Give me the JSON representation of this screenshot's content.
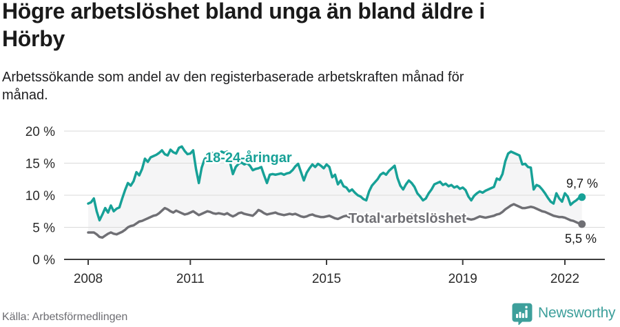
{
  "header": {
    "title": "Högre arbetslöshet bland unga än bland äldre i Hörby",
    "subtitle": "Arbetssökande som andel av den registerbaserade arbetskraften månad för månad."
  },
  "footer": {
    "source": "Källa: Arbetsförmedlingen",
    "brand": "Newsworthy"
  },
  "colors": {
    "youth_line": "#17a197",
    "total_line": "#6f6f74",
    "area_fill": "#f5f5f6",
    "gridline": "#dadada",
    "axis": "#3c3c3c",
    "text_dark": "#1a1a1a",
    "source_text": "#6c6c71",
    "brand_teal": "#3d9f9b"
  },
  "chart_data": {
    "type": "line",
    "title": "Högre arbetslöshet bland unga än bland äldre i Hörby",
    "subtitle": "Arbetssökande som andel av den registerbaserade arbetskraften månad för månad.",
    "unit": "%",
    "frequency": "monthly",
    "x_start": "2008-01",
    "x_end": "2022-07",
    "ylim": [
      0,
      20
    ],
    "grid": "horizontal",
    "legend_position": "inline-labels",
    "x_tick_labels": [
      "2008",
      "2011",
      "2015",
      "2019",
      "2022"
    ],
    "x_tick_years": [
      2008,
      2011,
      2015,
      2019,
      2022
    ],
    "y_tick_values": [
      0,
      5,
      10,
      15,
      20
    ],
    "y_tick_labels": [
      "0 %",
      "5 %",
      "10 %",
      "15 %",
      "20 %"
    ],
    "series": [
      {
        "id": "youth",
        "name": "18-24-åringar",
        "color": "#17a197",
        "last_value_label": "9,7 %",
        "last_value": 9.7,
        "values": [
          8.7,
          8.9,
          9.5,
          7.5,
          6.1,
          7.0,
          8.0,
          7.3,
          8.4,
          7.5,
          7.9,
          8.1,
          9.5,
          10.8,
          11.9,
          11.5,
          12.2,
          13.6,
          13.1,
          14.1,
          15.7,
          15.2,
          15.9,
          16.1,
          16.3,
          16.6,
          17.0,
          16.4,
          16.2,
          17.1,
          16.7,
          16.5,
          17.4,
          17.6,
          16.9,
          16.4,
          16.5,
          17.0,
          14.1,
          11.9,
          14.3,
          15.6,
          16.1,
          16.4,
          16.6,
          16.3,
          16.5,
          16.8,
          16.6,
          16.8,
          15.1,
          13.3,
          14.4,
          14.9,
          15.1,
          14.8,
          15.0,
          14.6,
          13.9,
          14.1,
          14.2,
          14.4,
          13.1,
          11.9,
          13.2,
          13.3,
          13.2,
          13.3,
          13.4,
          13.2,
          13.4,
          13.5,
          13.9,
          14.5,
          14.9,
          13.6,
          12.3,
          13.5,
          14.2,
          14.8,
          14.4,
          14.9,
          14.6,
          14.2,
          14.8,
          14.4,
          12.8,
          13.2,
          11.7,
          12.3,
          11.4,
          11.2,
          10.6,
          10.9,
          10.4,
          10.0,
          9.8,
          9.4,
          9.2,
          10.6,
          11.5,
          12.0,
          12.5,
          13.2,
          13.5,
          13.2,
          13.8,
          14.2,
          14.6,
          12.7,
          11.5,
          10.9,
          11.7,
          12.3,
          11.9,
          11.3,
          10.3,
          9.8,
          9.2,
          9.5,
          10.3,
          10.9,
          11.7,
          11.9,
          12.1,
          11.6,
          11.8,
          11.4,
          11.6,
          11.2,
          11.4,
          11.0,
          11.2,
          10.8,
          9.8,
          9.2,
          9.9,
          10.3,
          10.6,
          10.4,
          10.7,
          10.9,
          11.1,
          11.3,
          12.6,
          12.4,
          13.3,
          15.3,
          16.5,
          16.8,
          16.6,
          16.4,
          16.2,
          14.8,
          14.9,
          14.4,
          14.3,
          10.9,
          11.6,
          11.4,
          10.9,
          10.3,
          9.6,
          9.0,
          8.7,
          10.3,
          9.5,
          9.0,
          10.3,
          9.8,
          8.5,
          8.9,
          9.2,
          9.6,
          9.7
        ]
      },
      {
        "id": "total",
        "name": "Total arbetslöshet",
        "color": "#6f6f74",
        "last_value_label": "5,5 %",
        "last_value": 5.5,
        "values": [
          4.2,
          4.2,
          4.2,
          3.9,
          3.5,
          3.4,
          3.7,
          4.0,
          4.2,
          4.0,
          3.9,
          4.1,
          4.3,
          4.6,
          5.0,
          5.2,
          5.3,
          5.6,
          5.9,
          6.0,
          6.2,
          6.4,
          6.6,
          6.8,
          6.9,
          7.2,
          7.6,
          8.0,
          7.8,
          7.5,
          7.3,
          7.6,
          7.4,
          7.2,
          7.0,
          7.1,
          7.3,
          7.5,
          7.2,
          6.9,
          7.1,
          7.3,
          7.5,
          7.4,
          7.2,
          7.1,
          7.2,
          7.1,
          7.0,
          7.2,
          6.9,
          6.7,
          6.9,
          7.2,
          7.3,
          7.1,
          7.0,
          6.9,
          6.8,
          7.2,
          7.7,
          7.5,
          7.2,
          7.0,
          7.1,
          7.2,
          7.3,
          7.1,
          7.0,
          6.9,
          7.0,
          7.1,
          7.0,
          7.1,
          6.9,
          6.7,
          6.6,
          6.7,
          6.9,
          7.0,
          6.8,
          6.7,
          6.6,
          6.6,
          6.7,
          6.8,
          6.6,
          6.4,
          6.3,
          6.5,
          6.7,
          6.8,
          6.6,
          6.5,
          6.4,
          6.5,
          6.6,
          6.7,
          6.5,
          6.4,
          6.5,
          6.7,
          6.9,
          6.8,
          6.6,
          6.5,
          6.6,
          6.7,
          6.8,
          6.9,
          6.7,
          6.6,
          6.7,
          6.9,
          7.0,
          6.8,
          6.6,
          6.5,
          6.4,
          6.5,
          6.6,
          6.6,
          6.4,
          6.3,
          6.4,
          6.5,
          6.6,
          6.5,
          6.4,
          6.3,
          6.3,
          6.4,
          6.5,
          6.5,
          6.3,
          6.2,
          6.3,
          6.5,
          6.7,
          6.6,
          6.5,
          6.6,
          6.7,
          6.8,
          7.0,
          7.1,
          7.4,
          7.8,
          8.1,
          8.4,
          8.6,
          8.4,
          8.2,
          8.0,
          8.0,
          8.1,
          8.2,
          8.1,
          7.9,
          7.7,
          7.5,
          7.4,
          7.2,
          7.0,
          6.8,
          6.7,
          6.6,
          6.6,
          6.5,
          6.3,
          6.1,
          6.0,
          5.8,
          5.6,
          5.5
        ]
      }
    ]
  }
}
